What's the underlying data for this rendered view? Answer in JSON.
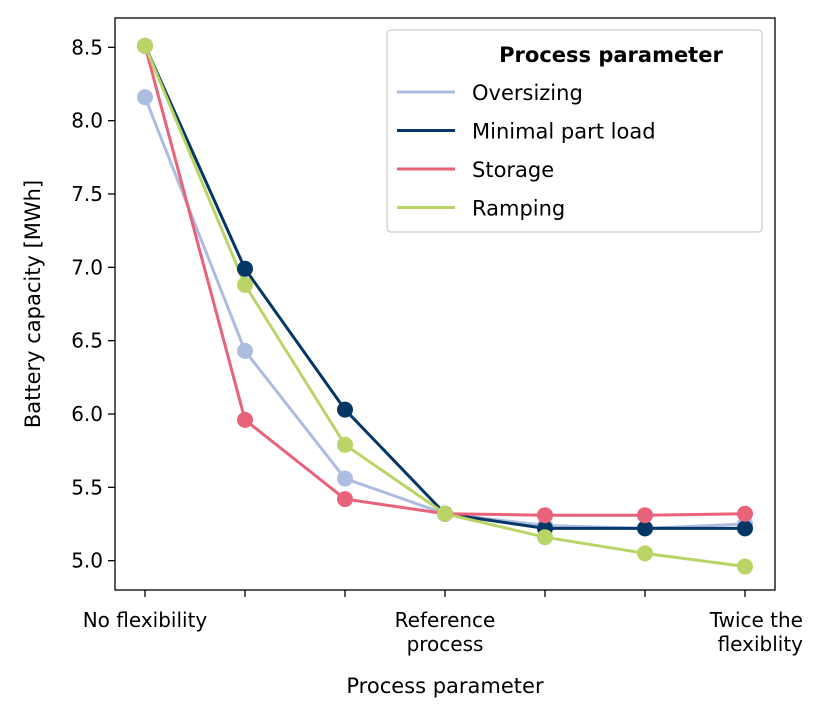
{
  "chart_data": {
    "type": "line",
    "title": "",
    "xlabel": "Process parameter",
    "ylabel": "Battery capacity [MWh]",
    "ylim": [
      4.8,
      8.7
    ],
    "yticks": [
      5.0,
      5.5,
      6.0,
      6.5,
      7.0,
      7.5,
      8.0,
      8.5
    ],
    "ytick_labels": [
      "5.0",
      "5.5",
      "6.0",
      "6.5",
      "7.0",
      "7.5",
      "8.0",
      "8.5"
    ],
    "x": [
      0,
      1,
      2,
      3,
      4,
      5,
      6
    ],
    "xtick_labels": [
      [
        "No flexibility"
      ],
      [],
      [],
      [
        "Reference",
        "process"
      ],
      [],
      [],
      [
        "Twice the",
        "flexiblity"
      ]
    ],
    "legend": {
      "title": "Process parameter",
      "position": "top-right"
    },
    "series": [
      {
        "name": "Oversizing",
        "color": "#aebce2",
        "values": [
          8.16,
          6.43,
          5.56,
          5.32,
          5.24,
          5.22,
          5.25
        ]
      },
      {
        "name": "Minimal part load",
        "color": "#053766",
        "values": [
          8.51,
          6.99,
          6.03,
          5.32,
          5.22,
          5.22,
          5.22
        ]
      },
      {
        "name": "Storage",
        "color": "#e8627a",
        "values": [
          8.51,
          5.96,
          5.42,
          5.32,
          5.31,
          5.31,
          5.32
        ]
      },
      {
        "name": "Ramping",
        "color": "#bad567",
        "values": [
          8.51,
          6.88,
          5.79,
          5.32,
          5.16,
          5.05,
          4.96
        ]
      }
    ]
  }
}
